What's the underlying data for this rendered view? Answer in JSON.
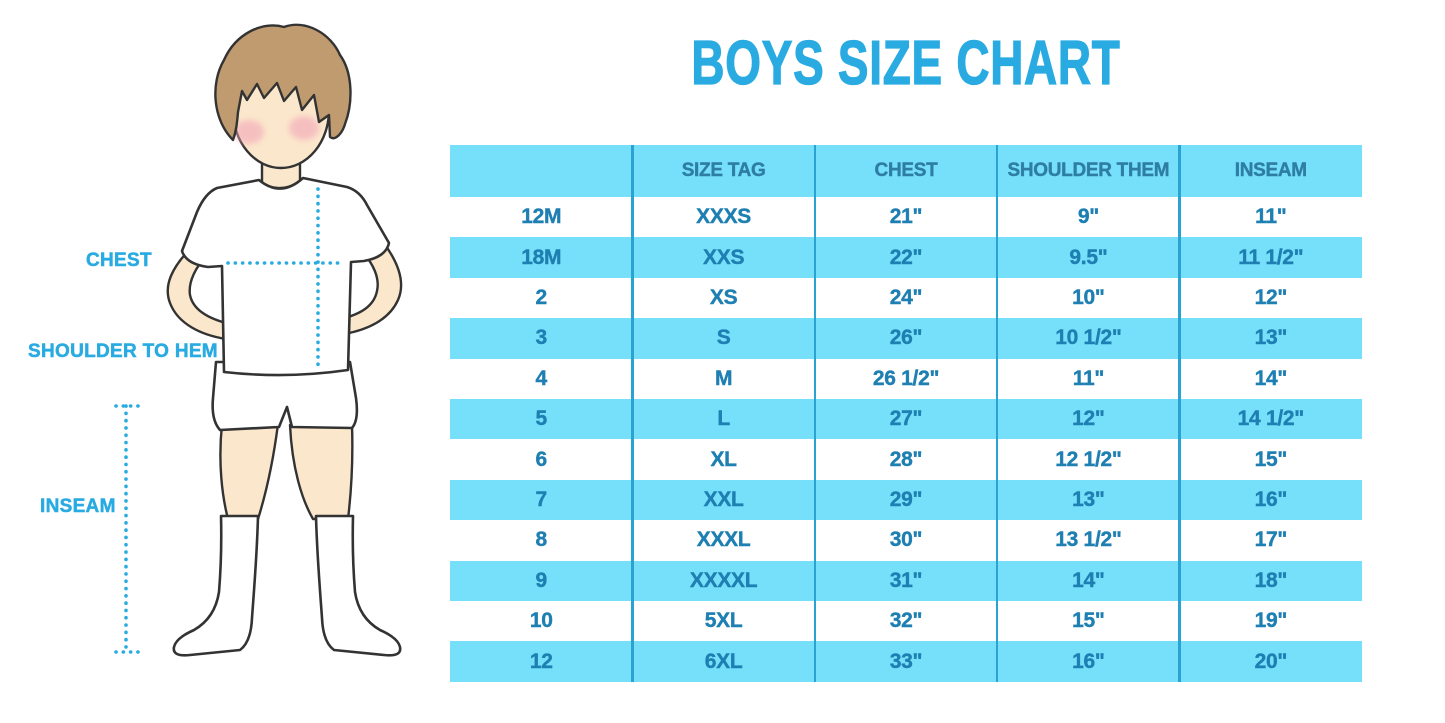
{
  "page": {
    "title": "BOYS SIZE CHART"
  },
  "figure": {
    "chest_label": "CHEST",
    "shoulder_label": "SHOULDER TO HEM",
    "inseam_label": "INSEAM"
  },
  "colors": {
    "accent_cyan": "#29ABE2",
    "band_light_blue": "#76E0FA",
    "divider_blue": "#2AA2D2",
    "header_text_blue": "#2E7EA4",
    "cell_text_blue": "#1E7FB2",
    "skin": "#FBE7CC",
    "hair_brown": "#C09B6F",
    "blush_pink": "#F2A6B8",
    "outline_dark": "#333333"
  },
  "chart_data": {
    "type": "table",
    "title": "BOYS SIZE CHART",
    "columns": [
      "",
      "SIZE TAG",
      "CHEST",
      "SHOULDER THEM",
      "INSEAM"
    ],
    "rows": [
      [
        "12M",
        "XXXS",
        "21\"",
        "9\"",
        "11\""
      ],
      [
        "18M",
        "XXS",
        "22\"",
        "9.5\"",
        "11 1/2\""
      ],
      [
        "2",
        "XS",
        "24\"",
        "10\"",
        "12\""
      ],
      [
        "3",
        "S",
        "26\"",
        "10 1/2\"",
        "13\""
      ],
      [
        "4",
        "M",
        "26 1/2\"",
        "11\"",
        "14\""
      ],
      [
        "5",
        "L",
        "27\"",
        "12\"",
        "14 1/2\""
      ],
      [
        "6",
        "XL",
        "28\"",
        "12 1/2\"",
        "15\""
      ],
      [
        "7",
        "XXL",
        "29\"",
        "13\"",
        "16\""
      ],
      [
        "8",
        "XXXL",
        "30\"",
        "13 1/2\"",
        "17\""
      ],
      [
        "9",
        "XXXXL",
        "31\"",
        "14\"",
        "18\""
      ],
      [
        "10",
        "5XL",
        "32\"",
        "15\"",
        "19\""
      ],
      [
        "12",
        "6XL",
        "33\"",
        "16\"",
        "20\""
      ]
    ]
  }
}
